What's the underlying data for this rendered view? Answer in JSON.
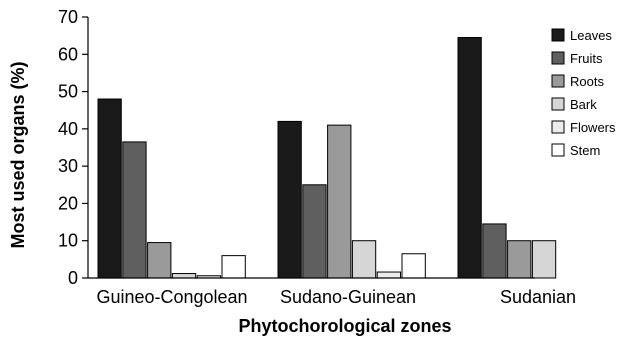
{
  "chart_data": {
    "type": "bar",
    "xlabel": "Phytochorological zones",
    "ylabel": "Most used organs (%)",
    "ylim": [
      0,
      70
    ],
    "yticks": [
      0,
      10,
      20,
      30,
      40,
      50,
      60,
      70
    ],
    "grid": false,
    "legend_position": "right",
    "categories": [
      "Guineo-Congolean",
      "Sudano-Guinean",
      "Sudanian"
    ],
    "series": [
      {
        "name": "Leaves",
        "color": "#1a1a1a",
        "values": [
          48,
          42,
          64.5
        ]
      },
      {
        "name": "Fruits",
        "color": "#5f5f5f",
        "values": [
          36.5,
          25,
          14.5
        ]
      },
      {
        "name": "Roots",
        "color": "#9a9a9a",
        "values": [
          9.5,
          41,
          10
        ]
      },
      {
        "name": "Bark",
        "color": "#d6d6d6",
        "values": [
          1.2,
          10,
          10
        ]
      },
      {
        "name": "Flowers",
        "color": "#ececec",
        "values": [
          0.6,
          1.6,
          null
        ]
      },
      {
        "name": "Stem",
        "color": "#ffffff",
        "values": [
          6,
          6.5,
          null
        ]
      }
    ]
  }
}
